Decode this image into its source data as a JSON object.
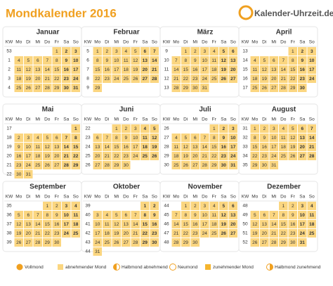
{
  "title": "Mondkalender 2016",
  "logo": "Kalender-Uhrzeit.de",
  "weekday_header": [
    "KW",
    "Mo",
    "Di",
    "Mi",
    "Do",
    "Fr",
    "Sa",
    "So"
  ],
  "months": [
    {
      "name": "Januar",
      "kw": [
        53,
        1,
        2,
        3,
        4
      ],
      "days": [
        [
          null,
          null,
          null,
          null,
          1,
          2,
          3
        ],
        [
          4,
          5,
          6,
          7,
          8,
          9,
          10
        ],
        [
          11,
          12,
          13,
          14,
          15,
          16,
          17
        ],
        [
          18,
          19,
          20,
          21,
          22,
          23,
          24
        ],
        [
          25,
          26,
          27,
          28,
          29,
          30,
          31
        ]
      ]
    },
    {
      "name": "Februar",
      "kw": [
        5,
        6,
        7,
        8,
        9
      ],
      "days": [
        [
          1,
          2,
          3,
          4,
          5,
          6,
          7
        ],
        [
          8,
          9,
          10,
          11,
          12,
          13,
          14
        ],
        [
          15,
          16,
          17,
          18,
          19,
          20,
          21
        ],
        [
          22,
          23,
          24,
          25,
          26,
          27,
          28
        ],
        [
          29,
          null,
          null,
          null,
          null,
          null,
          null
        ]
      ]
    },
    {
      "name": "März",
      "kw": [
        9,
        10,
        11,
        12,
        13
      ],
      "days": [
        [
          null,
          1,
          2,
          3,
          4,
          5,
          6
        ],
        [
          7,
          8,
          9,
          10,
          11,
          12,
          13
        ],
        [
          14,
          15,
          16,
          17,
          18,
          19,
          20
        ],
        [
          21,
          22,
          23,
          24,
          25,
          26,
          27
        ],
        [
          28,
          29,
          30,
          31,
          null,
          null,
          null
        ]
      ]
    },
    {
      "name": "April",
      "kw": [
        13,
        14,
        15,
        16,
        17
      ],
      "days": [
        [
          null,
          null,
          null,
          null,
          1,
          2,
          3
        ],
        [
          4,
          5,
          6,
          7,
          8,
          9,
          10
        ],
        [
          11,
          12,
          13,
          14,
          15,
          16,
          17
        ],
        [
          18,
          19,
          20,
          21,
          22,
          23,
          24
        ],
        [
          25,
          26,
          27,
          28,
          29,
          30,
          null
        ]
      ]
    },
    {
      "name": "Mai",
      "kw": [
        17,
        18,
        19,
        20,
        21,
        22
      ],
      "days": [
        [
          null,
          null,
          null,
          null,
          null,
          null,
          1
        ],
        [
          2,
          3,
          4,
          5,
          6,
          7,
          8
        ],
        [
          9,
          10,
          11,
          12,
          13,
          14,
          15
        ],
        [
          16,
          17,
          18,
          19,
          20,
          21,
          22
        ],
        [
          23,
          24,
          25,
          26,
          27,
          28,
          29
        ],
        [
          30,
          31,
          null,
          null,
          null,
          null,
          null
        ]
      ]
    },
    {
      "name": "Juni",
      "kw": [
        22,
        23,
        24,
        25,
        26
      ],
      "days": [
        [
          null,
          null,
          1,
          2,
          3,
          4,
          5
        ],
        [
          6,
          7,
          8,
          9,
          10,
          11,
          12
        ],
        [
          13,
          14,
          15,
          16,
          17,
          18,
          19
        ],
        [
          20,
          21,
          22,
          23,
          24,
          25,
          26
        ],
        [
          27,
          28,
          29,
          30,
          null,
          null,
          null
        ]
      ]
    },
    {
      "name": "Juli",
      "kw": [
        26,
        27,
        28,
        29,
        30
      ],
      "days": [
        [
          null,
          null,
          null,
          null,
          1,
          2,
          3
        ],
        [
          4,
          5,
          6,
          7,
          8,
          9,
          10
        ],
        [
          11,
          12,
          13,
          14,
          15,
          16,
          17
        ],
        [
          18,
          19,
          20,
          21,
          22,
          23,
          24
        ],
        [
          25,
          26,
          27,
          28,
          29,
          30,
          31
        ]
      ]
    },
    {
      "name": "August",
      "kw": [
        31,
        32,
        33,
        34,
        35
      ],
      "days": [
        [
          1,
          2,
          3,
          4,
          5,
          6,
          7
        ],
        [
          8,
          9,
          10,
          11,
          12,
          13,
          14
        ],
        [
          15,
          16,
          17,
          18,
          19,
          20,
          21
        ],
        [
          22,
          23,
          24,
          25,
          26,
          27,
          28
        ],
        [
          29,
          30,
          31,
          null,
          null,
          null,
          null
        ]
      ]
    },
    {
      "name": "September",
      "kw": [
        35,
        36,
        37,
        38,
        39
      ],
      "days": [
        [
          null,
          null,
          null,
          1,
          2,
          3,
          4
        ],
        [
          5,
          6,
          7,
          8,
          9,
          10,
          11
        ],
        [
          12,
          13,
          14,
          15,
          16,
          17,
          18
        ],
        [
          19,
          20,
          21,
          22,
          23,
          24,
          25
        ],
        [
          26,
          27,
          28,
          29,
          30,
          null,
          null
        ]
      ]
    },
    {
      "name": "Oktober",
      "kw": [
        39,
        40,
        41,
        42,
        43,
        44
      ],
      "days": [
        [
          null,
          null,
          null,
          null,
          null,
          1,
          2
        ],
        [
          3,
          4,
          5,
          6,
          7,
          8,
          9
        ],
        [
          10,
          11,
          12,
          13,
          14,
          15,
          16
        ],
        [
          17,
          18,
          19,
          20,
          21,
          22,
          23
        ],
        [
          24,
          25,
          26,
          27,
          28,
          29,
          30
        ],
        [
          31,
          null,
          null,
          null,
          null,
          null,
          null
        ]
      ]
    },
    {
      "name": "November",
      "kw": [
        44,
        45,
        46,
        47,
        48
      ],
      "days": [
        [
          null,
          1,
          2,
          3,
          4,
          5,
          6
        ],
        [
          7,
          8,
          9,
          10,
          11,
          12,
          13
        ],
        [
          14,
          15,
          16,
          17,
          18,
          19,
          20
        ],
        [
          21,
          22,
          23,
          24,
          25,
          26,
          27
        ],
        [
          28,
          29,
          30,
          null,
          null,
          null,
          null
        ]
      ]
    },
    {
      "name": "Dezember",
      "kw": [
        48,
        49,
        50,
        51,
        52
      ],
      "days": [
        [
          null,
          null,
          null,
          1,
          2,
          3,
          4
        ],
        [
          5,
          6,
          7,
          8,
          9,
          10,
          11
        ],
        [
          12,
          13,
          14,
          15,
          16,
          17,
          18
        ],
        [
          19,
          20,
          21,
          22,
          23,
          24,
          25
        ],
        [
          26,
          27,
          28,
          29,
          30,
          31,
          null
        ]
      ]
    }
  ],
  "legend": [
    "Vollmond",
    "abnehmender Mond",
    "Halbmond abnehmend",
    "Neumond",
    "zunehmender Mond",
    "Halbmond zunehmend"
  ]
}
